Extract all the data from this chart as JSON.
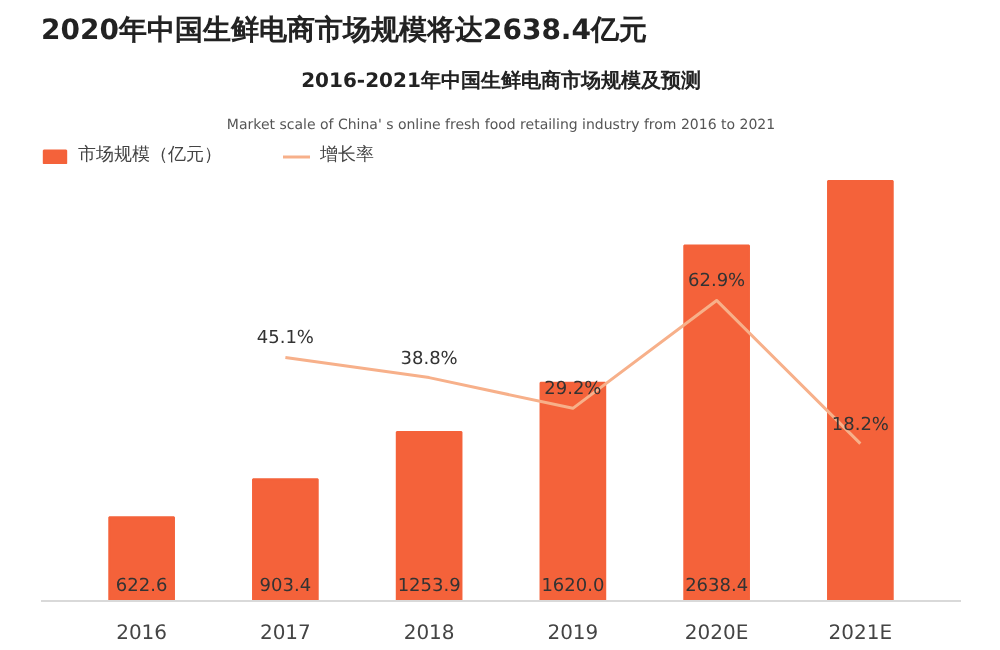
{
  "chart_data": {
    "type": "bar",
    "title": "2020年中国生鲜电商市场规模将达2638.4亿元",
    "subtitle": "2016-2021年中国生鲜电商市场规模及预测",
    "annotations": [
      "Market scale of China' s online fresh food retailing industry from 2016 to 2021"
    ],
    "categories": [
      "2016",
      "2017",
      "2018",
      "2019",
      "2020E",
      "2021E"
    ],
    "series": [
      {
        "name": "市场规模（亿元）",
        "color": "#f4623a",
        "values": [
          622.6,
          903.4,
          1253.9,
          1620.0,
          2638.4,
          3118.0
        ],
        "value_labels": [
          "622.6",
          "903.4",
          "1253.9",
          "1620.0",
          "2638.4",
          null
        ]
      },
      {
        "name": "增长率",
        "type": "line",
        "axis": "y2",
        "color": "#f7b08a",
        "values": [
          null,
          45.1,
          38.8,
          29.2,
          62.9,
          18.2
        ],
        "value_labels": [
          null,
          "45.1%",
          "38.8%",
          "29.2%",
          "62.9%",
          "18.2%"
        ]
      }
    ],
    "ylim": [
      0,
      3400
    ],
    "legend": "top left",
    "grid": false,
    "tick_labels": "x"
  }
}
